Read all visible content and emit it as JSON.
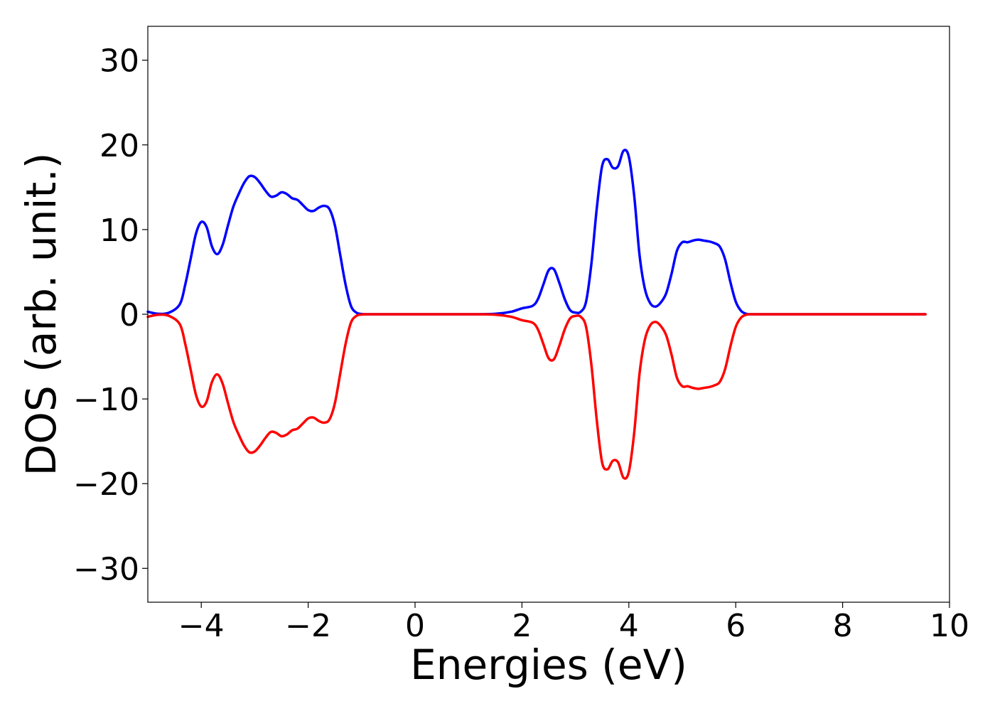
{
  "chart_data": {
    "type": "line",
    "title": "",
    "xlabel": "Energies (eV)",
    "ylabel": "DOS (arb. unit.)",
    "xlim": [
      -5,
      10
    ],
    "ylim": [
      -34,
      34
    ],
    "xticks": [
      -4,
      -2,
      0,
      2,
      4,
      6,
      8,
      10
    ],
    "xtick_labels": [
      "−4",
      "−2",
      "0",
      "2",
      "4",
      "6",
      "8",
      "10"
    ],
    "yticks": [
      30,
      20,
      10,
      0,
      -10,
      -20,
      -30
    ],
    "ytick_labels": [
      "30",
      "20",
      "10",
      "0",
      "−10",
      "−20",
      "−30"
    ],
    "grid": false,
    "legend": "none",
    "x": [
      -5.0,
      -4.8,
      -4.6,
      -4.4,
      -4.3,
      -4.2,
      -4.1,
      -4.0,
      -3.9,
      -3.8,
      -3.7,
      -3.6,
      -3.5,
      -3.4,
      -3.3,
      -3.2,
      -3.1,
      -3.0,
      -2.9,
      -2.8,
      -2.7,
      -2.6,
      -2.5,
      -2.4,
      -2.3,
      -2.2,
      -2.1,
      -2.0,
      -1.9,
      -1.8,
      -1.7,
      -1.6,
      -1.5,
      -1.4,
      -1.3,
      -1.2,
      -1.1,
      -1.0,
      -0.9,
      -0.8,
      -0.7,
      -0.6,
      -0.5,
      0.0,
      1.0,
      1.5,
      1.8,
      2.0,
      2.2,
      2.3,
      2.4,
      2.5,
      2.6,
      2.7,
      2.8,
      2.9,
      3.0,
      3.1,
      3.2,
      3.3,
      3.4,
      3.5,
      3.6,
      3.7,
      3.8,
      3.9,
      4.0,
      4.1,
      4.2,
      4.3,
      4.4,
      4.5,
      4.6,
      4.7,
      4.8,
      4.9,
      5.0,
      5.1,
      5.2,
      5.3,
      5.4,
      5.5,
      5.6,
      5.7,
      5.8,
      5.9,
      6.0,
      6.1,
      6.2,
      6.3,
      6.4,
      6.5,
      6.6,
      6.7,
      6.8,
      6.9,
      7.0,
      7.1,
      7.2,
      8.0,
      9.0,
      9.55
    ],
    "series": [
      {
        "color": "#0000ff",
        "values": [
          0.3,
          0.05,
          0.2,
          1.2,
          3.5,
          6.5,
          9.5,
          10.9,
          10.3,
          8.0,
          7.1,
          8.2,
          10.5,
          12.7,
          14.2,
          15.5,
          16.3,
          16.2,
          15.5,
          14.6,
          13.9,
          14.0,
          14.4,
          14.2,
          13.7,
          13.5,
          12.9,
          12.3,
          12.2,
          12.6,
          12.8,
          12.4,
          10.5,
          7.0,
          3.5,
          1.0,
          0.2,
          0.03,
          0.0,
          0.0,
          0.0,
          0.0,
          0.0,
          0.0,
          0.0,
          0.05,
          0.3,
          0.7,
          1.0,
          1.8,
          3.5,
          5.2,
          5.3,
          3.7,
          1.8,
          0.5,
          0.2,
          0.3,
          1.5,
          6.0,
          12.5,
          17.5,
          18.3,
          17.3,
          17.5,
          19.3,
          18.6,
          14.0,
          7.0,
          3.0,
          1.3,
          0.9,
          1.4,
          2.5,
          4.8,
          7.5,
          8.5,
          8.5,
          8.7,
          8.8,
          8.7,
          8.6,
          8.4,
          8.0,
          6.5,
          3.8,
          1.5,
          0.4,
          0.05,
          0.0,
          0.0,
          0.0,
          0.0,
          0.0,
          0.0,
          0.0,
          0.0,
          0.0,
          0.0,
          0.0,
          0.0,
          0.0
        ]
      },
      {
        "color": "#ff0000",
        "values": [
          -0.3,
          -0.05,
          -0.2,
          -1.2,
          -3.5,
          -6.5,
          -9.5,
          -10.9,
          -10.3,
          -8.0,
          -7.1,
          -8.2,
          -10.5,
          -12.7,
          -14.2,
          -15.5,
          -16.3,
          -16.2,
          -15.5,
          -14.6,
          -13.9,
          -14.0,
          -14.4,
          -14.2,
          -13.7,
          -13.5,
          -12.9,
          -12.3,
          -12.2,
          -12.6,
          -12.8,
          -12.4,
          -10.5,
          -7.0,
          -3.5,
          -1.0,
          -0.2,
          -0.03,
          0.0,
          0.0,
          0.0,
          0.0,
          0.0,
          0.0,
          0.0,
          -0.05,
          -0.3,
          -0.7,
          -1.0,
          -1.8,
          -3.5,
          -5.2,
          -5.3,
          -3.7,
          -1.8,
          -0.5,
          -0.2,
          -0.3,
          -1.5,
          -6.0,
          -12.5,
          -17.5,
          -18.3,
          -17.3,
          -17.5,
          -19.3,
          -18.6,
          -14.0,
          -7.0,
          -3.0,
          -1.3,
          -0.9,
          -1.4,
          -2.5,
          -4.8,
          -7.5,
          -8.5,
          -8.5,
          -8.7,
          -8.8,
          -8.7,
          -8.6,
          -8.4,
          -8.0,
          -6.5,
          -3.8,
          -1.5,
          -0.4,
          -0.05,
          0.0,
          0.0,
          0.0,
          0.0,
          0.0,
          0.0,
          0.0,
          0.0,
          0.0,
          0.0,
          0.0,
          0.0,
          0.0
        ]
      }
    ]
  }
}
